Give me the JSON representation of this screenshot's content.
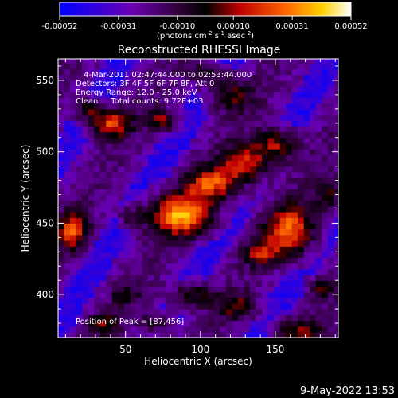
{
  "chart_data": {
    "type": "heatmap",
    "title": "Reconstructed RHESSI Image",
    "xlabel": "Heliocentric X (arcsec)",
    "ylabel": "Heliocentric Y (arcsec)",
    "xlim": [
      5,
      192
    ],
    "ylim": [
      370,
      565
    ],
    "xticks": [
      50,
      100,
      150
    ],
    "yticks": [
      400,
      450,
      500,
      550
    ],
    "colorbar": {
      "ticks": [
        "-0.00052",
        "-0.00031",
        "-0.00010",
        "0.00010",
        "0.00031",
        "0.00052"
      ],
      "min": -0.00052,
      "max": 0.00052,
      "unit_parts": [
        "(photons cm",
        "-2",
        " s",
        "-1",
        " asec",
        "-2",
        ")"
      ]
    },
    "annotations": [
      "4-Mar-2011 02:47:44.000 to 02:53:44.000",
      "Detectors: 3F 4F 5F 6F 7F 8F, Att 0",
      "Energy Range: 12.0 - 25.0 keV",
      "Clean     Total counts: 9.72E+03"
    ],
    "peak_label": "Position of Peak = [87,456]",
    "peak": [
      87,
      456
    ],
    "blobs": [
      {
        "x": 87,
        "y": 456,
        "sx": 14,
        "sy": 10,
        "v": 1.0
      },
      {
        "x": 108,
        "y": 478,
        "sx": 12,
        "sy": 8,
        "v": 0.75
      },
      {
        "x": 130,
        "y": 492,
        "sx": 10,
        "sy": 9,
        "v": 0.7
      },
      {
        "x": 150,
        "y": 505,
        "sx": 10,
        "sy": 8,
        "v": 0.65
      },
      {
        "x": 160,
        "y": 445,
        "sx": 11,
        "sy": 12,
        "v": 0.85
      },
      {
        "x": 140,
        "y": 430,
        "sx": 8,
        "sy": 6,
        "v": 0.55
      },
      {
        "x": 40,
        "y": 520,
        "sx": 9,
        "sy": 7,
        "v": 0.75
      },
      {
        "x": 25,
        "y": 530,
        "sx": 6,
        "sy": 5,
        "v": 0.5
      },
      {
        "x": 15,
        "y": 445,
        "sx": 7,
        "sy": 9,
        "v": 0.75
      },
      {
        "x": 75,
        "y": 522,
        "sx": 7,
        "sy": 5,
        "v": 0.55
      },
      {
        "x": 120,
        "y": 540,
        "sx": 10,
        "sy": 8,
        "v": 0.45
      },
      {
        "x": 95,
        "y": 400,
        "sx": 10,
        "sy": 6,
        "v": 0.5
      },
      {
        "x": 125,
        "y": 392,
        "sx": 9,
        "sy": 6,
        "v": 0.45
      },
      {
        "x": 55,
        "y": 455,
        "sx": 6,
        "sy": 5,
        "v": 0.35
      },
      {
        "x": 70,
        "y": 380,
        "sx": 8,
        "sy": 5,
        "v": 0.4
      },
      {
        "x": 165,
        "y": 375,
        "sx": 10,
        "sy": 6,
        "v": 0.5
      },
      {
        "x": 185,
        "y": 470,
        "sx": 6,
        "sy": 8,
        "v": 0.45
      },
      {
        "x": 105,
        "y": 555,
        "sx": 8,
        "sy": 5,
        "v": 0.4
      },
      {
        "x": 50,
        "y": 400,
        "sx": 7,
        "sy": 5,
        "v": 0.3
      },
      {
        "x": 35,
        "y": 380,
        "sx": 7,
        "sy": 5,
        "v": 0.45
      },
      {
        "x": 180,
        "y": 405,
        "sx": 6,
        "sy": 5,
        "v": 0.4
      }
    ]
  },
  "footer": {
    "date": "9-May-2022 13:53"
  }
}
